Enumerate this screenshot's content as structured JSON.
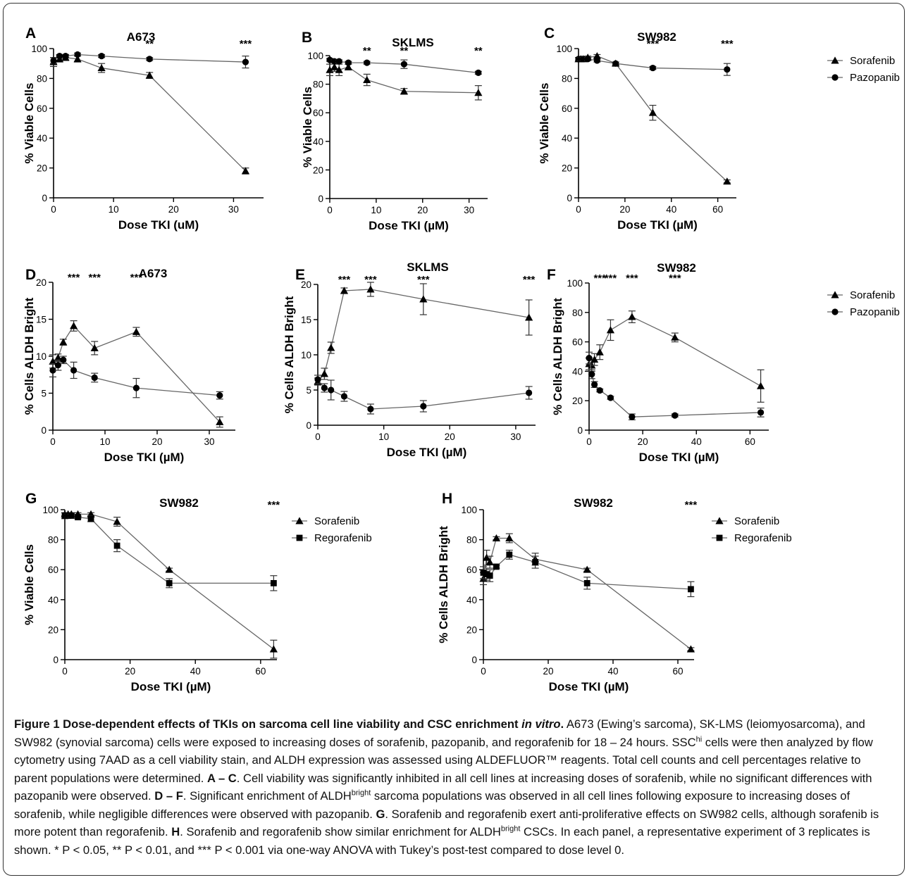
{
  "chart_data": [
    {
      "id": "A",
      "letter": "A",
      "type": "line",
      "title": "A673",
      "xlabel": "Dose TKI (uM)",
      "ylabel": "% Viable Cells",
      "xlim": [
        0,
        35
      ],
      "ylim": [
        0,
        100
      ],
      "xticks": [
        "0",
        "10",
        "20",
        "30"
      ],
      "yticks": [
        "0",
        "20",
        "40",
        "60",
        "80",
        "100"
      ],
      "series": [
        {
          "name": "Sorafenib",
          "marker": "triangle",
          "x": [
            0,
            1,
            2,
            4,
            8,
            16,
            32
          ],
          "y": [
            91,
            93,
            94,
            93,
            87,
            82,
            18
          ],
          "err": [
            3,
            2,
            2,
            2,
            3,
            2,
            2
          ]
        },
        {
          "name": "Pazopanib",
          "marker": "circle",
          "x": [
            0,
            1,
            2,
            4,
            8,
            16,
            32
          ],
          "y": [
            92,
            95,
            95,
            96,
            95,
            93,
            91
          ],
          "err": [
            2,
            1,
            1,
            1,
            1,
            1,
            4
          ]
        }
      ],
      "annotations": [
        {
          "x": 16,
          "text": "**"
        },
        {
          "x": 32,
          "text": "***"
        }
      ]
    },
    {
      "id": "B",
      "letter": "B",
      "type": "line",
      "title": "SKLMS",
      "xlabel": "Dose TKI (µM)",
      "ylabel": "% Viable Cells",
      "xlim": [
        0,
        34
      ],
      "ylim": [
        0,
        100
      ],
      "xticks": [
        "0",
        "10",
        "20",
        "30"
      ],
      "yticks": [
        "0",
        "20",
        "40",
        "60",
        "80",
        "100"
      ],
      "series": [
        {
          "name": "Sorafenib",
          "marker": "triangle",
          "x": [
            0,
            1,
            2,
            4,
            8,
            16,
            32
          ],
          "y": [
            90,
            92,
            90,
            92,
            83,
            75,
            74
          ],
          "err": [
            4,
            3,
            4,
            2,
            4,
            2,
            5
          ]
        },
        {
          "name": "Pazopanib",
          "marker": "circle",
          "x": [
            0,
            1,
            2,
            4,
            8,
            16,
            32
          ],
          "y": [
            97,
            96,
            96,
            95,
            95,
            94,
            88
          ],
          "err": [
            1,
            1,
            1,
            1,
            1,
            3,
            1
          ]
        }
      ],
      "annotations": [
        {
          "x": 8,
          "text": "**"
        },
        {
          "x": 16,
          "text": "**"
        },
        {
          "x": 32,
          "text": "**"
        }
      ]
    },
    {
      "id": "C",
      "letter": "C",
      "type": "line",
      "title": "SW982",
      "xlabel": "Dose TKI (µM)",
      "ylabel": "% Viable Cells",
      "xlim": [
        0,
        68
      ],
      "ylim": [
        0,
        100
      ],
      "xticks": [
        "0",
        "20",
        "40",
        "60"
      ],
      "yticks": [
        "0",
        "20",
        "40",
        "60",
        "80",
        "100"
      ],
      "legend": [
        "Sorafenib",
        "Pazopanib"
      ],
      "series": [
        {
          "name": "Sorafenib",
          "marker": "triangle",
          "x": [
            0,
            1,
            2,
            4,
            8,
            16,
            32,
            64
          ],
          "y": [
            93,
            93,
            93,
            94,
            95,
            90,
            57,
            11
          ],
          "err": [
            1,
            1,
            1,
            1,
            1,
            1,
            5,
            1
          ]
        },
        {
          "name": "Pazopanib",
          "marker": "circle",
          "x": [
            0,
            1,
            2,
            4,
            8,
            16,
            32,
            64
          ],
          "y": [
            93,
            93,
            93,
            93,
            92,
            90,
            87,
            86
          ],
          "err": [
            1,
            1,
            1,
            1,
            1,
            1,
            1,
            4
          ]
        }
      ],
      "annotations": [
        {
          "x": 32,
          "text": "***"
        },
        {
          "x": 64,
          "text": "***"
        }
      ]
    },
    {
      "id": "D",
      "letter": "D",
      "type": "line",
      "title": "A673",
      "xlabel": "Dose TKI (µM)",
      "ylabel": "% Cells ALDH Bright",
      "xlim": [
        0,
        35
      ],
      "ylim": [
        0,
        20
      ],
      "xticks": [
        "0",
        "10",
        "20",
        "30"
      ],
      "yticks": [
        "0",
        "5",
        "10",
        "15",
        "20"
      ],
      "series": [
        {
          "name": "Sorafenib",
          "marker": "triangle",
          "x": [
            0,
            1,
            2,
            4,
            8,
            16,
            32
          ],
          "y": [
            9.3,
            9.8,
            11.9,
            14.1,
            11.1,
            13.3,
            1.1
          ],
          "err": [
            0.9,
            0.5,
            0.4,
            0.7,
            0.9,
            0.6,
            0.7
          ]
        },
        {
          "name": "Pazopanib",
          "marker": "circle",
          "x": [
            0,
            1,
            2,
            4,
            8,
            16,
            32
          ],
          "y": [
            8.1,
            8.8,
            9.5,
            8.1,
            7.1,
            5.7,
            4.7
          ],
          "err": [
            0.9,
            0.7,
            0.5,
            1.1,
            0.6,
            1.3,
            0.5
          ]
        }
      ],
      "annotations": [
        {
          "x": 4,
          "text": "***"
        },
        {
          "x": 8,
          "text": "***"
        },
        {
          "x": 16,
          "text": "***"
        }
      ]
    },
    {
      "id": "E",
      "letter": "E",
      "type": "line",
      "title": "SKLMS",
      "xlabel": "Dose TKI (µM)",
      "ylabel": "% Cells ALDH Bright",
      "xlim": [
        0,
        33
      ],
      "ylim": [
        0,
        20
      ],
      "xticks": [
        "0",
        "10",
        "20",
        "30"
      ],
      "yticks": [
        "0",
        "5",
        "10",
        "15",
        "20"
      ],
      "series": [
        {
          "name": "Sorafenib",
          "marker": "triangle",
          "x": [
            0,
            1,
            2,
            4,
            8,
            16,
            32
          ],
          "y": [
            6.2,
            7.3,
            11.0,
            19.1,
            19.3,
            17.9,
            15.3
          ],
          "err": [
            0.5,
            0.8,
            0.8,
            0.4,
            1.0,
            2.2,
            2.5
          ]
        },
        {
          "name": "Pazopanib",
          "marker": "circle",
          "x": [
            0,
            1,
            2,
            4,
            8,
            16,
            32
          ],
          "y": [
            6.5,
            5.3,
            5.0,
            4.1,
            2.3,
            2.7,
            4.6
          ],
          "err": [
            0.6,
            0.6,
            1.4,
            0.7,
            0.7,
            0.8,
            0.9
          ]
        }
      ],
      "annotations": [
        {
          "x": 4,
          "text": "***"
        },
        {
          "x": 8,
          "text": "***"
        },
        {
          "x": 16,
          "text": "***"
        },
        {
          "x": 32,
          "text": "***"
        }
      ]
    },
    {
      "id": "F",
      "letter": "F",
      "type": "line",
      "title": "SW982",
      "xlabel": "Dose TKI (µM)",
      "ylabel": "% Cells ALDH Bright",
      "xlim": [
        0,
        67
      ],
      "ylim": [
        0,
        100
      ],
      "xticks": [
        "0",
        "20",
        "40",
        "60"
      ],
      "yticks": [
        "0",
        "20",
        "40",
        "60",
        "80",
        "100"
      ],
      "legend": [
        "Sorafenib",
        "Pazopanib"
      ],
      "series": [
        {
          "name": "Sorafenib",
          "marker": "triangle",
          "x": [
            0,
            1,
            2,
            4,
            8,
            16,
            32,
            64
          ],
          "y": [
            45,
            44,
            48,
            53,
            68,
            77,
            63,
            30
          ],
          "err": [
            4,
            4,
            4,
            5,
            7,
            4,
            3,
            11
          ]
        },
        {
          "name": "Pazopanib",
          "marker": "circle",
          "x": [
            0,
            1,
            2,
            4,
            8,
            16,
            32,
            64
          ],
          "y": [
            49,
            38,
            31,
            27,
            22,
            9,
            10,
            12
          ],
          "err": [
            4,
            3,
            2,
            1,
            1,
            2,
            1,
            3
          ]
        }
      ],
      "annotations": [
        {
          "x": 4,
          "text": "***"
        },
        {
          "x": 8,
          "text": "***"
        },
        {
          "x": 16,
          "text": "***"
        },
        {
          "x": 32,
          "text": "***"
        }
      ]
    },
    {
      "id": "G",
      "letter": "G",
      "type": "line",
      "title": "SW982",
      "xlabel": "Dose TKI (µM)",
      "ylabel": "% Viable Cells",
      "xlim": [
        0,
        65
      ],
      "ylim": [
        0,
        100
      ],
      "xticks": [
        "0",
        "20",
        "40",
        "60"
      ],
      "yticks": [
        "0",
        "20",
        "40",
        "60",
        "80",
        "100"
      ],
      "legend": [
        "Sorafenib",
        "Regorafenib"
      ],
      "series": [
        {
          "name": "Sorafenib",
          "marker": "triangle",
          "x": [
            0,
            1,
            2,
            4,
            8,
            16,
            32,
            64
          ],
          "y": [
            97,
            97,
            97,
            97,
            97,
            92,
            60,
            7
          ],
          "err": [
            1,
            1,
            1,
            1,
            1,
            3,
            1,
            6
          ]
        },
        {
          "name": "Regorafenib",
          "marker": "square",
          "x": [
            0,
            1,
            2,
            4,
            8,
            16,
            32,
            64
          ],
          "y": [
            96,
            96,
            96,
            95,
            94,
            76,
            51,
            51
          ],
          "err": [
            2,
            1,
            1,
            1,
            2,
            4,
            3,
            5
          ]
        }
      ],
      "annotations": [
        {
          "x": 64,
          "text": "***"
        }
      ]
    },
    {
      "id": "H",
      "letter": "H",
      "type": "line",
      "title": "SW982",
      "xlabel": "Dose TKI (µM)",
      "ylabel": "% Cells ALDH Bright",
      "xlim": [
        0,
        65
      ],
      "ylim": [
        0,
        100
      ],
      "xticks": [
        "0",
        "20",
        "40",
        "60"
      ],
      "yticks": [
        "0",
        "20",
        "40",
        "60",
        "80",
        "100"
      ],
      "legend": [
        "Sorafenib",
        "Regorafenib"
      ],
      "series": [
        {
          "name": "Sorafenib",
          "marker": "triangle",
          "x": [
            0,
            1,
            2,
            4,
            8,
            16,
            32,
            64
          ],
          "y": [
            54,
            68,
            65,
            81,
            81,
            67,
            60,
            7
          ],
          "err": [
            4,
            5,
            4,
            1,
            3,
            4,
            1,
            1
          ]
        },
        {
          "name": "Regorafenib",
          "marker": "square",
          "x": [
            0,
            1,
            2,
            4,
            8,
            16,
            32,
            64
          ],
          "y": [
            58,
            57,
            56,
            62,
            70,
            65,
            51,
            47
          ],
          "err": [
            4,
            4,
            4,
            1,
            3,
            4,
            4,
            5
          ]
        }
      ],
      "annotations": [
        {
          "x": 64,
          "text": "***"
        }
      ]
    }
  ],
  "caption": {
    "title": "Figure 1 Dose-dependent effects of TKIs on sarcoma cell line viability and CSC enrichment",
    "title_italic": "in vitro",
    "title_end": ".",
    "p1": " A673 (Ewing’s sarcoma), SK-LMS (leiomyosarcoma), and SW982 (synovial sarcoma) cells were exposed to increasing doses of sorafenib, pazopanib, and regorafenib for 18 – 24 hours. SSC",
    "p1_sup": "hi",
    "p2": " cells were then analyzed by flow cytometry using 7AAD as a cell viability stain, and ALDH expression was assessed using ALDEFLUOR™ reagents. Total cell counts and cell percentages relative to parent populations were determined. ",
    "ac": "A – C",
    "p3": ". Cell viability was significantly inhibited in all cell lines at increasing doses of sorafenib, while no significant differences with pazopanib were observed. ",
    "df": "D – F",
    "p4": ". Significant enrichment of ALDH",
    "p4_sup": "bright",
    "p5": " sarcoma populations was observed in all cell lines following exposure to increasing doses of sorafenib, while negligible differences were observed with pazopanib. ",
    "g": "G",
    "p6": ". Sorafenib and regorafenib exert anti-proliferative effects on SW982 cells, although sorafenib is more potent than regorafenib. ",
    "h": "H",
    "p7": ". Sorafenib and regorafenib show similar enrichment for ALDH",
    "p7_sup": "bright",
    "p8": " CSCs. In each panel, a representative experiment of 3 replicates is shown. * P < 0.05, ** P < 0.01, and *** P < 0.001 via one-way ANOVA with Tukey’s post-test compared to dose level 0."
  }
}
